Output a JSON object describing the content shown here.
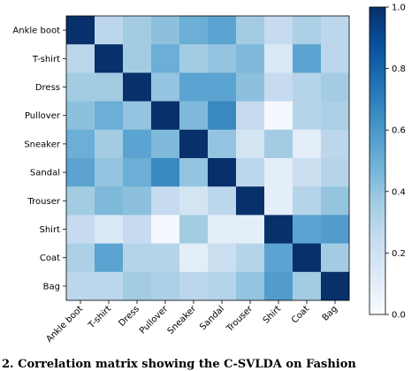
{
  "chart_data": {
    "type": "heatmap",
    "title": "",
    "xlabel": "",
    "ylabel": "",
    "rows": [
      "Ankle boot",
      "T-shirt",
      "Dress",
      "Pullover",
      "Sneaker",
      "Sandal",
      "Trouser",
      "Shirt",
      "Coat",
      "Bag"
    ],
    "cols": [
      "Ankle boot",
      "T-shirt",
      "Dress",
      "Pullover",
      "Sneaker",
      "Sandal",
      "Trouser",
      "Shirt",
      "Coat",
      "Bag"
    ],
    "values": [
      [
        1.0,
        0.28,
        0.36,
        0.42,
        0.5,
        0.55,
        0.36,
        0.25,
        0.33,
        0.28
      ],
      [
        0.28,
        1.0,
        0.36,
        0.5,
        0.36,
        0.4,
        0.45,
        0.15,
        0.55,
        0.28
      ],
      [
        0.36,
        0.36,
        1.0,
        0.4,
        0.55,
        0.55,
        0.42,
        0.25,
        0.3,
        0.36
      ],
      [
        0.42,
        0.5,
        0.4,
        1.0,
        0.45,
        0.66,
        0.25,
        0.02,
        0.3,
        0.33
      ],
      [
        0.5,
        0.36,
        0.55,
        0.45,
        1.0,
        0.4,
        0.18,
        0.36,
        0.1,
        0.28
      ],
      [
        0.55,
        0.4,
        0.5,
        0.66,
        0.4,
        1.0,
        0.28,
        0.1,
        0.22,
        0.3
      ],
      [
        0.36,
        0.45,
        0.42,
        0.25,
        0.18,
        0.28,
        1.0,
        0.1,
        0.3,
        0.4
      ],
      [
        0.25,
        0.15,
        0.25,
        0.02,
        0.36,
        0.1,
        0.1,
        1.0,
        0.55,
        0.58
      ],
      [
        0.33,
        0.55,
        0.3,
        0.3,
        0.1,
        0.22,
        0.3,
        0.55,
        1.0,
        0.36
      ],
      [
        0.28,
        0.28,
        0.36,
        0.33,
        0.28,
        0.3,
        0.4,
        0.58,
        0.36,
        1.0
      ]
    ],
    "colorbar": {
      "min": 0.0,
      "max": 1.0,
      "ticks": [
        "0.0",
        "0.2",
        "0.4",
        "0.6",
        "0.8",
        "1.0"
      ],
      "colormap": "Blues"
    }
  },
  "caption": {
    "text": "2.  Correlation  matrix  showing  the  C-SVLDA  on  Fashion"
  }
}
